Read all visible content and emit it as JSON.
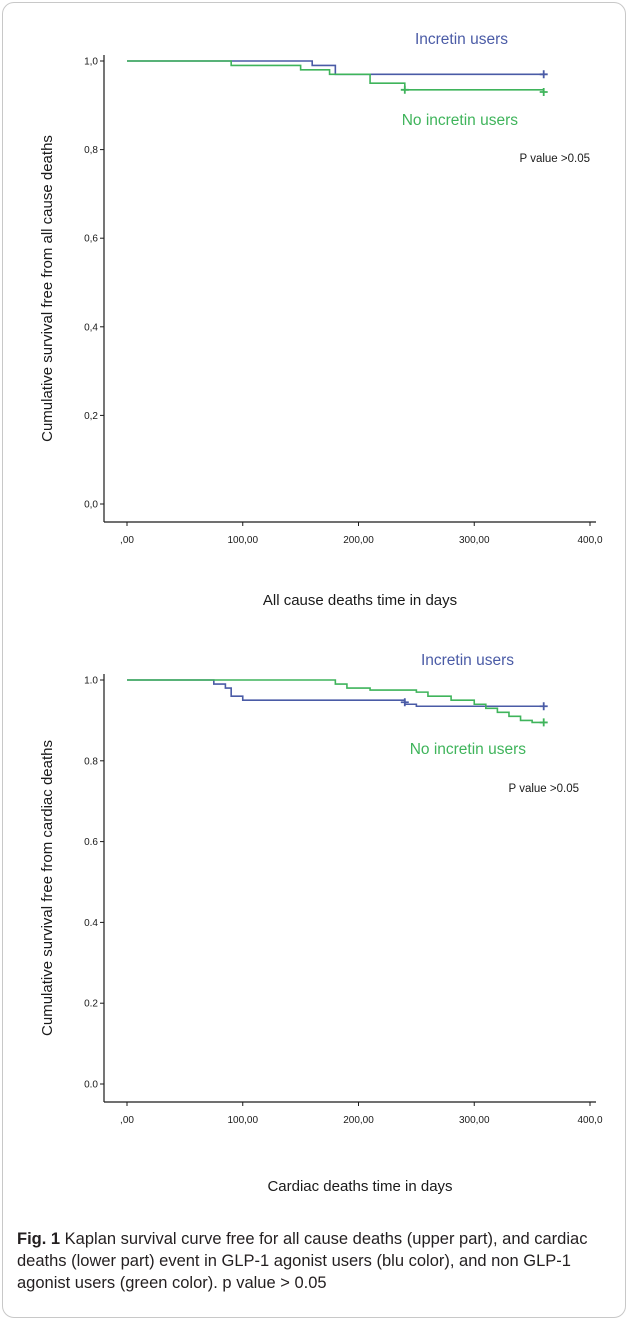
{
  "colors": {
    "blue": "#4a5ba6",
    "green": "#3fb45b",
    "axis": "#1a1a1a"
  },
  "chart_data": [
    {
      "type": "line",
      "subtype": "kaplan-meier step",
      "xlabel": "All cause deaths time in days",
      "ylabel": "Cumulative survival free from all cause deaths",
      "xlim": [
        0,
        400
      ],
      "ylim": [
        0,
        1
      ],
      "x_ticks": [
        0,
        100,
        200,
        300,
        400
      ],
      "x_tick_labels": [
        ",00",
        "100,00",
        "200,00",
        "300,00",
        "400,0"
      ],
      "y_ticks": [
        0,
        0.2,
        0.4,
        0.6,
        0.8,
        1.0
      ],
      "y_tick_labels": [
        "0,0",
        "0,2",
        "0,4",
        "0,6",
        "0,8",
        "1,0"
      ],
      "grid": false,
      "annotation": "P value >0.05",
      "series": [
        {
          "name": "Incretin users",
          "color": "#4a5ba6",
          "steps": [
            [
              0,
              1.0
            ],
            [
              160,
              0.99
            ],
            [
              180,
              0.97
            ],
            [
              360,
              0.97
            ]
          ],
          "censored": [
            [
              360,
              0.97
            ]
          ]
        },
        {
          "name": "No incretin users",
          "color": "#3fb45b",
          "steps": [
            [
              0,
              1.0
            ],
            [
              90,
              0.99
            ],
            [
              150,
              0.98
            ],
            [
              175,
              0.97
            ],
            [
              210,
              0.95
            ],
            [
              240,
              0.935
            ],
            [
              360,
              0.93
            ]
          ],
          "censored": [
            [
              240,
              0.935
            ],
            [
              360,
              0.93
            ]
          ]
        }
      ]
    },
    {
      "type": "line",
      "subtype": "kaplan-meier step",
      "xlabel": "Cardiac deaths time in days",
      "ylabel": "Cumulative survival free from cardiac deaths",
      "xlim": [
        0,
        400
      ],
      "ylim": [
        0,
        1
      ],
      "x_ticks": [
        0,
        100,
        200,
        300,
        400
      ],
      "x_tick_labels": [
        ",00",
        "100,00",
        "200,00",
        "300,00",
        "400,0"
      ],
      "y_ticks": [
        0,
        0.2,
        0.4,
        0.6,
        0.8,
        1.0
      ],
      "y_tick_labels": [
        "0.0",
        "0.2",
        "0.4",
        "0.6",
        "0.8",
        "1.0"
      ],
      "grid": false,
      "annotation": "P value >0.05",
      "series": [
        {
          "name": "Incretin users",
          "color": "#4a5ba6",
          "steps": [
            [
              0,
              1.0
            ],
            [
              75,
              0.99
            ],
            [
              85,
              0.98
            ],
            [
              90,
              0.96
            ],
            [
              100,
              0.95
            ],
            [
              240,
              0.94
            ],
            [
              250,
              0.935
            ],
            [
              360,
              0.935
            ]
          ],
          "censored": [
            [
              240,
              0.945
            ],
            [
              360,
              0.935
            ]
          ]
        },
        {
          "name": "No incretin users",
          "color": "#3fb45b",
          "steps": [
            [
              0,
              1.0
            ],
            [
              180,
              0.99
            ],
            [
              190,
              0.98
            ],
            [
              210,
              0.975
            ],
            [
              250,
              0.97
            ],
            [
              260,
              0.96
            ],
            [
              280,
              0.95
            ],
            [
              300,
              0.94
            ],
            [
              310,
              0.93
            ],
            [
              320,
              0.92
            ],
            [
              330,
              0.91
            ],
            [
              340,
              0.9
            ],
            [
              350,
              0.895
            ],
            [
              360,
              0.895
            ]
          ],
          "censored": [
            [
              360,
              0.895
            ]
          ]
        }
      ]
    }
  ],
  "caption": {
    "label": "Fig. 1",
    "text": "  Kaplan survival curve free for all cause deaths (upper part), and cardiac deaths (lower part) event in GLP-1 agonist users (blu color), and non GLP-1 agonist users (green color). p value > 0.05"
  }
}
